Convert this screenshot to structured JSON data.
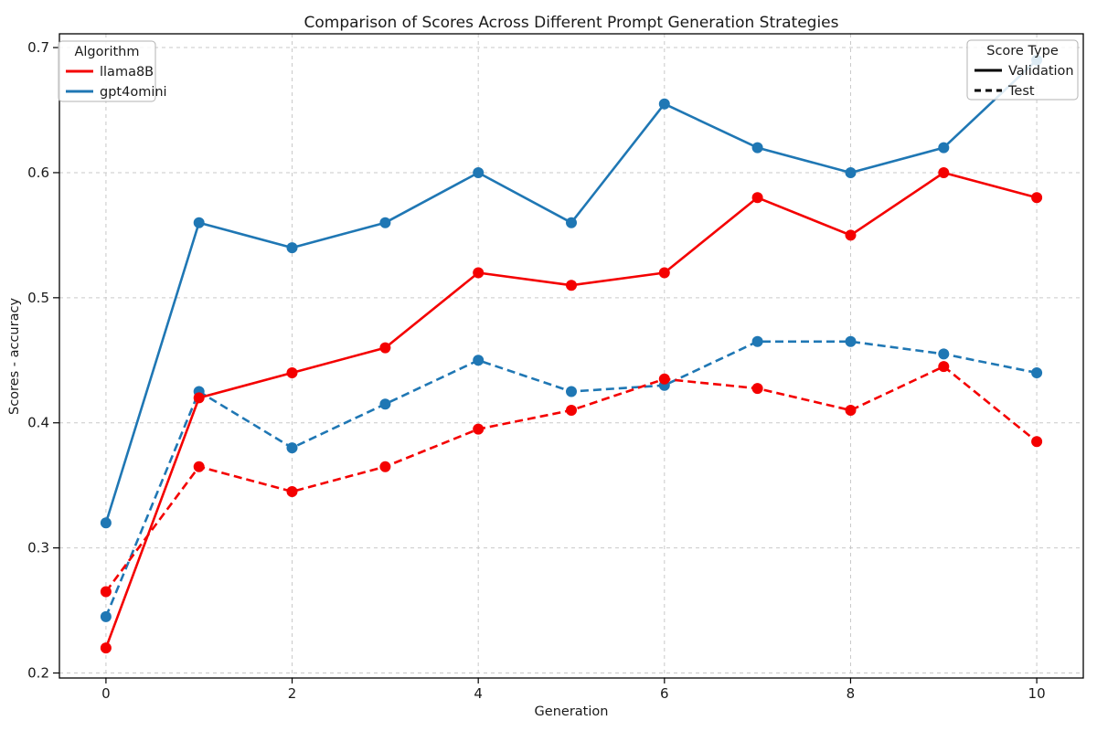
{
  "chart_data": {
    "type": "line",
    "title": "Comparison of Scores Across Different Prompt Generation Strategies",
    "xlabel": "Generation",
    "ylabel": "Scores - accuracy",
    "x": [
      0,
      1,
      2,
      3,
      4,
      5,
      6,
      7,
      8,
      9,
      10
    ],
    "xticks": [
      0,
      2,
      4,
      6,
      8,
      10
    ],
    "yticks": [
      0.2,
      0.3,
      0.4,
      0.5,
      0.6,
      0.7
    ],
    "xlim": [
      -0.5,
      10.5
    ],
    "ylim": [
      0.196,
      0.711
    ],
    "grid": true,
    "grid_style": "dashed",
    "colors": {
      "llama8B": "#f40000",
      "gpt4omini": "#1f77b4",
      "grid": "#c9c9c9",
      "legend_border": "#b3b3b3"
    },
    "legends": [
      {
        "title": "Algorithm",
        "position": "upper-left",
        "entries": [
          {
            "label": "llama8B",
            "color": "#f40000",
            "style": "solid"
          },
          {
            "label": "gpt4omini",
            "color": "#1f77b4",
            "style": "solid"
          }
        ]
      },
      {
        "title": "Score Type",
        "position": "upper-right",
        "entries": [
          {
            "label": "Validation",
            "color": "#000000",
            "style": "solid"
          },
          {
            "label": "Test",
            "color": "#000000",
            "style": "dashed"
          }
        ]
      }
    ],
    "series": [
      {
        "name": "gpt4omini",
        "score_type": "Validation",
        "color": "#1f77b4",
        "style": "solid",
        "values": [
          0.32,
          0.56,
          0.54,
          0.56,
          0.6,
          0.56,
          0.655,
          0.62,
          0.6,
          0.62,
          0.69
        ]
      },
      {
        "name": "gpt4omini",
        "score_type": "Test",
        "color": "#1f77b4",
        "style": "dashed",
        "values": [
          0.245,
          0.425,
          0.38,
          0.415,
          0.45,
          0.425,
          0.43,
          0.465,
          0.465,
          0.455,
          0.44
        ]
      },
      {
        "name": "llama8B",
        "score_type": "Validation",
        "color": "#f40000",
        "style": "solid",
        "values": [
          0.22,
          0.42,
          0.44,
          0.46,
          0.52,
          0.51,
          0.52,
          0.58,
          0.55,
          0.6,
          0.58
        ]
      },
      {
        "name": "llama8B",
        "score_type": "Test",
        "color": "#f40000",
        "style": "dashed",
        "values": [
          0.265,
          0.365,
          0.345,
          0.365,
          0.395,
          0.41,
          0.435,
          0.4275,
          0.41,
          0.445,
          0.385
        ]
      }
    ]
  }
}
